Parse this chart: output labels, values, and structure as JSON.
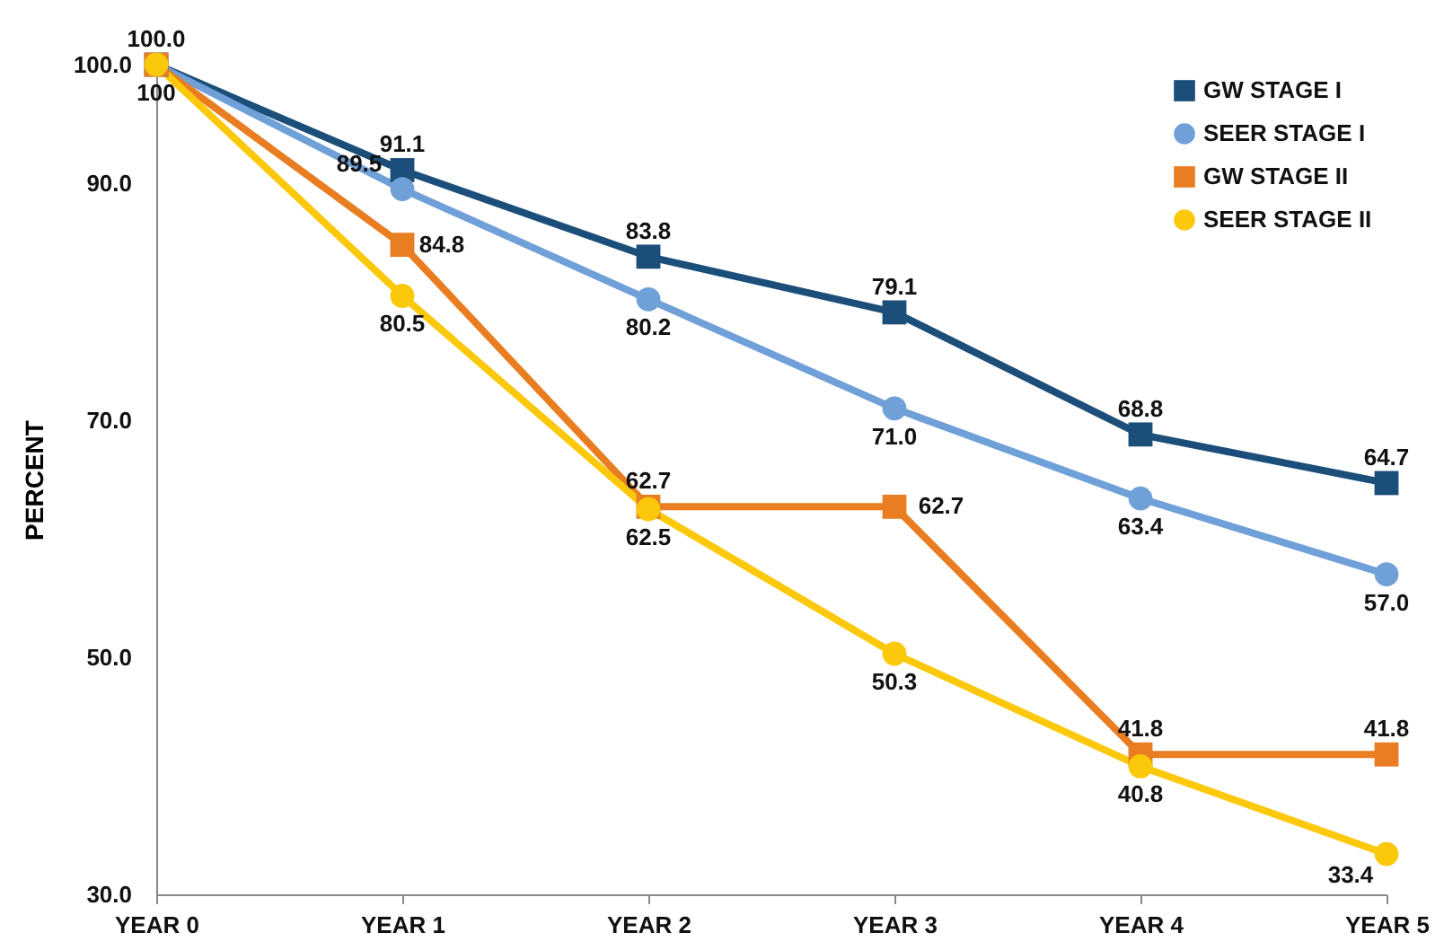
{
  "chart_data": {
    "type": "line",
    "ylabel": "PERCENT",
    "categories": [
      "YEAR 0",
      "YEAR 1",
      "YEAR 2",
      "YEAR 3",
      "YEAR 4",
      "YEAR 5"
    ],
    "series": [
      {
        "name": "GW STAGE I",
        "color": "#1b4f7a",
        "marker": "square",
        "values": [
          100,
          91.1,
          83.8,
          79.1,
          68.8,
          64.7
        ],
        "value_labels": [
          "100.0",
          "91.1",
          "83.8",
          "79.1",
          "68.8",
          "64.7"
        ]
      },
      {
        "name": "SEER STAGE I",
        "color": "#6fa0d8",
        "marker": "circle",
        "values": [
          100,
          89.5,
          80.2,
          71.0,
          63.4,
          57.0
        ],
        "value_labels": [
          null,
          "89.5",
          "80.2",
          "71.0",
          "63.4",
          "57.0"
        ]
      },
      {
        "name": "GW STAGE II",
        "color": "#e87d22",
        "marker": "square",
        "values": [
          100,
          84.8,
          62.7,
          62.7,
          41.8,
          41.8
        ],
        "value_labels": [
          null,
          "84.8",
          "62.7",
          "62.7",
          "41.8",
          "41.8"
        ]
      },
      {
        "name": "SEER STAGE II",
        "color": "#fcc80c",
        "marker": "circle",
        "values": [
          100,
          80.5,
          62.5,
          50.3,
          40.8,
          33.4
        ],
        "value_labels": [
          "100",
          "80.5",
          "62.5",
          "50.3",
          "40.8",
          "33.4"
        ]
      }
    ],
    "ylim": [
      30,
      100
    ],
    "yticks": [
      {
        "value": 30,
        "label": "30.0"
      },
      {
        "value": 50,
        "label": "50.0"
      },
      {
        "value": 70,
        "label": "70.0"
      },
      {
        "value": 90,
        "label": "90.0"
      },
      {
        "value": 100,
        "label": "100.0"
      }
    ],
    "grid": false,
    "legend": "top right",
    "line_style": "solid"
  }
}
